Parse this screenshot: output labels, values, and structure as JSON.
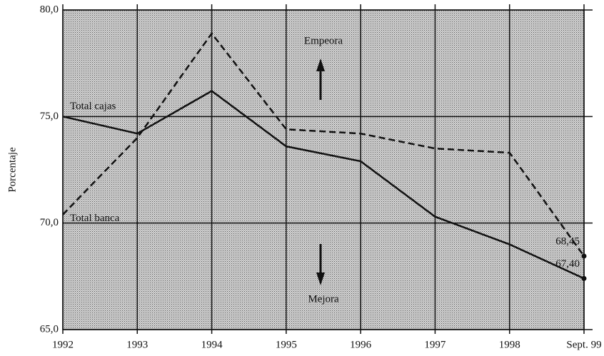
{
  "chart_data": {
    "type": "line",
    "y_label": "Porcentaje",
    "categories": [
      "1992",
      "1993",
      "1994",
      "1995",
      "1996",
      "1997",
      "1998",
      "Sept. 99"
    ],
    "series": [
      {
        "name": "Total cajas",
        "color": "#111111",
        "dash": false,
        "values": [
          75.0,
          74.2,
          76.2,
          73.6,
          72.9,
          70.3,
          69.0,
          67.4
        ],
        "value_labels": [
          null,
          null,
          null,
          null,
          null,
          null,
          null,
          "67,40"
        ]
      },
      {
        "name": "Total banca",
        "color": "#111111",
        "dash": true,
        "values": [
          70.4,
          74.0,
          78.9,
          74.4,
          74.2,
          73.5,
          73.3,
          68.45
        ],
        "value_labels": [
          null,
          null,
          null,
          null,
          null,
          null,
          null,
          "68,45"
        ]
      }
    ],
    "annotations": [
      "Empeora",
      "Mejora"
    ],
    "ylim": [
      65,
      80
    ],
    "yticks": [
      {
        "value": 65,
        "label": "65,0"
      },
      {
        "value": 70,
        "label": "70,0"
      },
      {
        "value": 75,
        "label": "75,0"
      },
      {
        "value": 80,
        "label": "80,0"
      }
    ],
    "grid": true
  }
}
